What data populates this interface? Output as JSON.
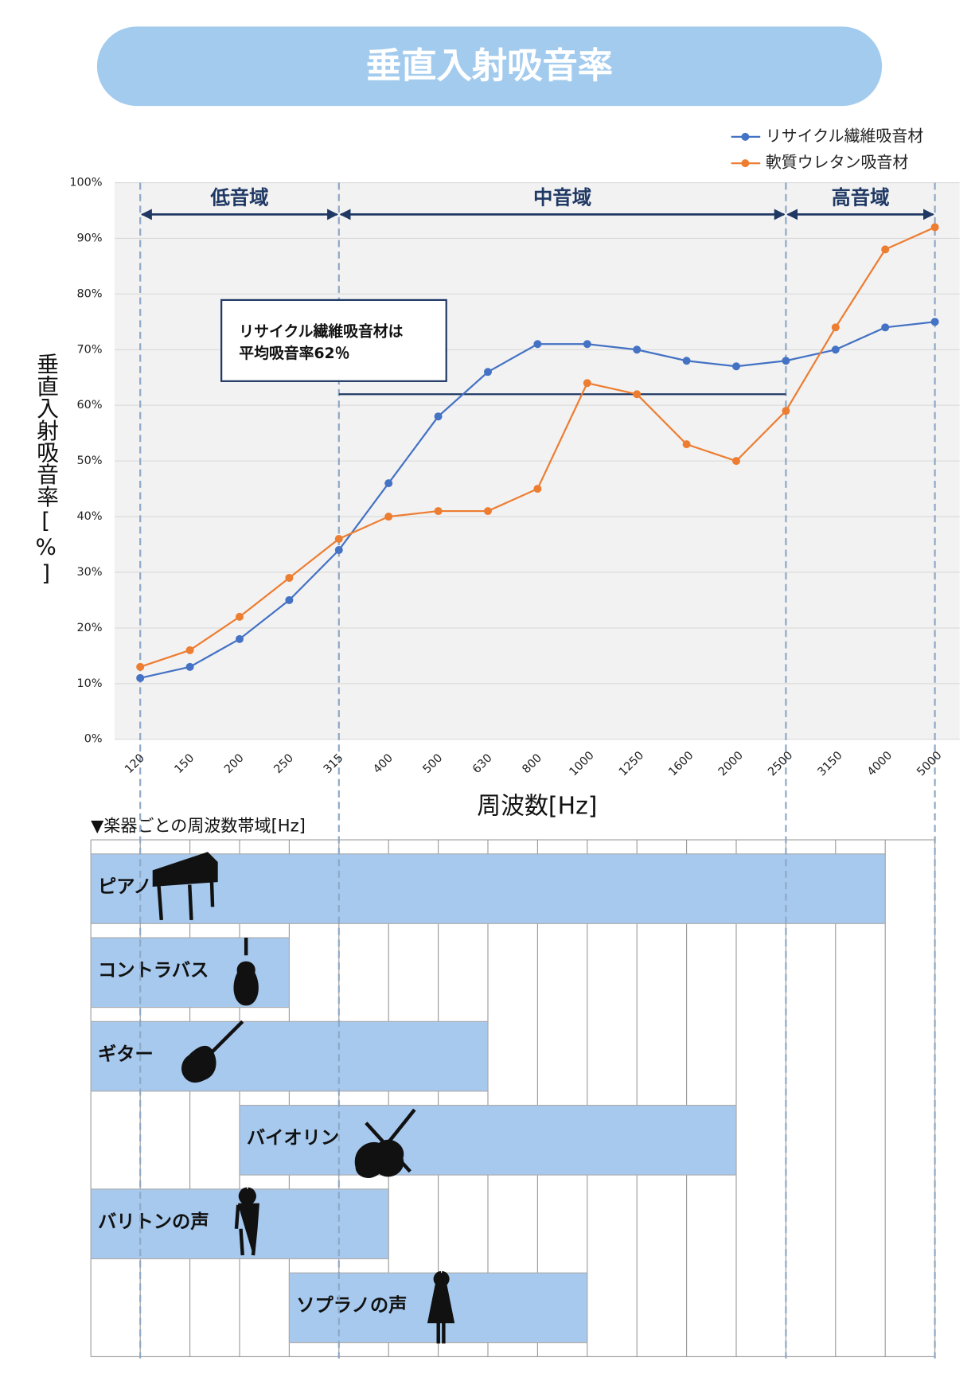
{
  "header": {
    "title": "垂直入射吸音率"
  },
  "chart_data": {
    "type": "line",
    "categories": [
      "120",
      "150",
      "200",
      "250",
      "315",
      "400",
      "500",
      "630",
      "800",
      "1000",
      "1250",
      "1600",
      "2000",
      "2500",
      "3150",
      "4000",
      "5000"
    ],
    "series": [
      {
        "name": "リサイクル繊維吸音材",
        "color": "#4472c4",
        "values": [
          11,
          13,
          18,
          25,
          34,
          46,
          58,
          66,
          71,
          71,
          70,
          68,
          67,
          68,
          70,
          74,
          75
        ]
      },
      {
        "name": "軟質ウレタン吸音材",
        "color": "#ed7d31",
        "values": [
          13,
          16,
          22,
          29,
          36,
          40,
          41,
          41,
          45,
          64,
          62,
          53,
          50,
          59,
          74,
          88,
          92
        ]
      }
    ],
    "ylim": [
      0,
      100
    ],
    "yticks": [
      {
        "value": 0,
        "label": "0%"
      },
      {
        "value": 10,
        "label": "10%"
      },
      {
        "value": 20,
        "label": "20%"
      },
      {
        "value": 30,
        "label": "30%"
      },
      {
        "value": 40,
        "label": "40%"
      },
      {
        "value": 50,
        "label": "50%"
      },
      {
        "value": 60,
        "label": "60%"
      },
      {
        "value": 70,
        "label": "70%"
      },
      {
        "value": 80,
        "label": "80%"
      },
      {
        "value": 90,
        "label": "90%"
      },
      {
        "value": 100,
        "label": "100%"
      }
    ],
    "y_label": "垂直入射吸音率[%]",
    "x_label": "周波数[Hz]",
    "grid": true,
    "legend": "top-right",
    "bands": [
      {
        "label": "低音域",
        "from": "120",
        "to": "315"
      },
      {
        "label": "中音域",
        "from": "315",
        "to": "2500"
      },
      {
        "label": "高音域",
        "from": "2500",
        "to": "5000"
      }
    ],
    "annotation": {
      "lines": [
        "リサイクル繊維吸音材は",
        "平均吸音率62％"
      ],
      "value": 62,
      "from": "315",
      "to": "2500"
    }
  },
  "instruments": {
    "title": "▼楽器ごとの周波数帯域[Hz]",
    "items": [
      "ピアノ",
      "コントラバス",
      "ギター",
      "バイオリン",
      "バリトンの声",
      "ソプラノの声"
    ]
  }
}
